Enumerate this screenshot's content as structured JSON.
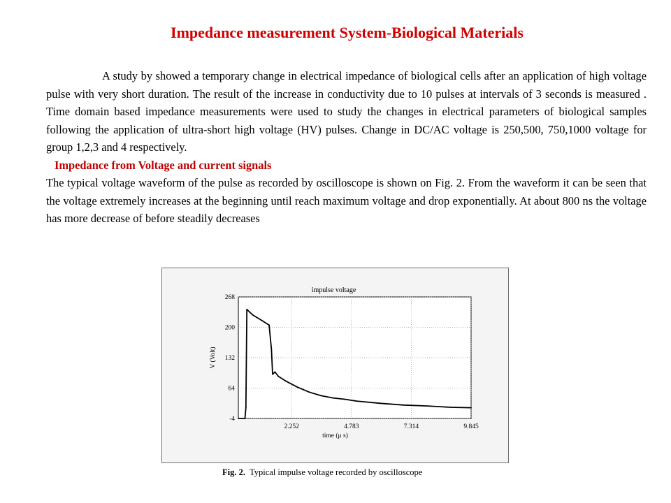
{
  "title": "Impedance measurement System-Biological Materials",
  "paragraph1": "A study by showed a temporary change in electrical impedance of biological cells after an application of high voltage pulse with very short duration. The result of the increase in conductivity due to 10 pulses at intervals of 3 seconds is measured . Time domain based impedance measurements were used to study the changes in electrical parameters of biological samples following the application of ultra-short high voltage (HV) pulses. Change in DC/AC voltage is 250,500, 750,1000 voltage for group 1,2,3 and 4 respectively.",
  "subheading": "Impedance from Voltage and current signals",
  "paragraph2": "The typical voltage waveform of the pulse as recorded by oscilloscope is shown on Fig. 2. From the waveform it can be seen that the voltage extremely increases at the beginning until reach maximum voltage and drop exponentially. At about 800 ns the voltage has more decrease of before steadily decreases",
  "caption": {
    "label": "Fig. 2.",
    "text": "Typical impulse voltage recorded by oscilloscope"
  },
  "colors": {
    "title": "#d00000",
    "subheading": "#c00000",
    "trace": "#000000",
    "grid": "#9a9a9a"
  },
  "chart_data": {
    "type": "line",
    "title": "impulse voltage",
    "xlabel": "time (μ s)",
    "ylabel": "V (Volt)",
    "xlim": [
      0,
      9.845
    ],
    "ylim": [
      -4,
      268
    ],
    "xticks": [
      2.252,
      4.783,
      7.314,
      9.845
    ],
    "yticks": [
      268,
      200,
      132,
      64,
      -4
    ],
    "grid": "dotted",
    "series": [
      {
        "x": [
          0.0,
          0.28,
          0.32,
          0.36,
          0.6,
          1.0,
          1.3,
          1.4,
          1.45,
          1.55,
          1.7,
          2.0,
          2.5,
          3.0,
          3.5,
          4.0,
          4.5,
          5.0,
          6.0,
          7.0,
          8.0,
          9.0,
          9.845
        ],
        "y": [
          -4,
          -4,
          20,
          240,
          228,
          215,
          205,
          150,
          95,
          100,
          90,
          80,
          66,
          55,
          47,
          42,
          39,
          35,
          30,
          26,
          24,
          21,
          20
        ]
      }
    ]
  }
}
